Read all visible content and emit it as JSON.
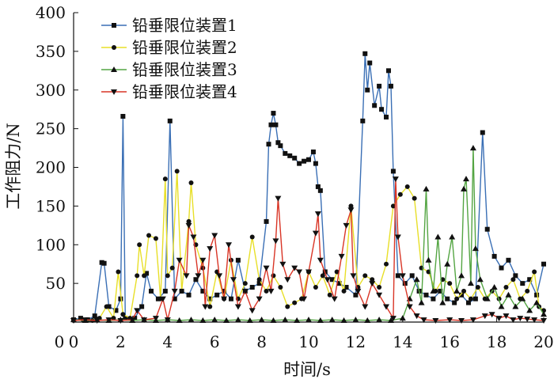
{
  "chart_data": {
    "type": "line",
    "xlabel": "时间/s",
    "ylabel": "工作阻力/N",
    "xlim": [
      0,
      20
    ],
    "ylim": [
      0,
      400
    ],
    "x_ticks": [
      "0",
      "2",
      "4",
      "6",
      "8",
      "10",
      "12",
      "14",
      "16",
      "18",
      "20"
    ],
    "y_ticks": [
      "0",
      "50",
      "100",
      "150",
      "200",
      "250",
      "300",
      "350",
      "400"
    ],
    "grid": false,
    "legend_position": "top-left",
    "series": [
      {
        "name": "铅垂限位装置1",
        "color": "#3a6fb5",
        "marker": "square",
        "points": [
          [
            0,
            3
          ],
          [
            0.3,
            5
          ],
          [
            0.6,
            3
          ],
          [
            0.9,
            8
          ],
          [
            1.2,
            77
          ],
          [
            1.3,
            76
          ],
          [
            1.5,
            20
          ],
          [
            1.8,
            15
          ],
          [
            2.0,
            30
          ],
          [
            2.1,
            266
          ],
          [
            2.2,
            5
          ],
          [
            2.6,
            5
          ],
          [
            2.9,
            20
          ],
          [
            3.1,
            63
          ],
          [
            3.3,
            40
          ],
          [
            3.6,
            30
          ],
          [
            3.9,
            40
          ],
          [
            4.1,
            260
          ],
          [
            4.3,
            30
          ],
          [
            4.6,
            40
          ],
          [
            4.9,
            35
          ],
          [
            5.2,
            55
          ],
          [
            5.5,
            40
          ],
          [
            5.8,
            30
          ],
          [
            6.1,
            35
          ],
          [
            6.4,
            40
          ],
          [
            6.7,
            30
          ],
          [
            7.0,
            80
          ],
          [
            7.3,
            40
          ],
          [
            7.6,
            45
          ],
          [
            7.9,
            50
          ],
          [
            8.2,
            130
          ],
          [
            8.3,
            230
          ],
          [
            8.4,
            255
          ],
          [
            8.5,
            270
          ],
          [
            8.6,
            255
          ],
          [
            8.7,
            232
          ],
          [
            8.8,
            228
          ],
          [
            9.0,
            218
          ],
          [
            9.2,
            215
          ],
          [
            9.4,
            212
          ],
          [
            9.6,
            205
          ],
          [
            9.8,
            208
          ],
          [
            10.0,
            210
          ],
          [
            10.2,
            220
          ],
          [
            10.3,
            205
          ],
          [
            10.4,
            175
          ],
          [
            10.5,
            170
          ],
          [
            10.7,
            65
          ],
          [
            11.0,
            55
          ],
          [
            11.3,
            50
          ],
          [
            11.6,
            45
          ],
          [
            12.0,
            35
          ],
          [
            12.3,
            260
          ],
          [
            12.4,
            347
          ],
          [
            12.5,
            300
          ],
          [
            12.6,
            335
          ],
          [
            12.8,
            280
          ],
          [
            13.0,
            305
          ],
          [
            13.1,
            275
          ],
          [
            13.3,
            265
          ],
          [
            13.4,
            325
          ],
          [
            13.5,
            305
          ],
          [
            13.6,
            195
          ],
          [
            13.8,
            60
          ],
          [
            14.1,
            50
          ],
          [
            14.4,
            60
          ],
          [
            14.7,
            40
          ],
          [
            15.0,
            35
          ],
          [
            15.3,
            30
          ],
          [
            15.6,
            40
          ],
          [
            15.9,
            30
          ],
          [
            16.2,
            25
          ],
          [
            16.5,
            35
          ],
          [
            16.8,
            25
          ],
          [
            17.1,
            30
          ],
          [
            17.4,
            245
          ],
          [
            17.6,
            120
          ],
          [
            17.9,
            85
          ],
          [
            18.2,
            70
          ],
          [
            18.5,
            80
          ],
          [
            18.8,
            60
          ],
          [
            19.1,
            50
          ],
          [
            19.4,
            55
          ],
          [
            19.7,
            35
          ],
          [
            20.0,
            75
          ]
        ]
      },
      {
        "name": "铅垂限位装置2",
        "color": "#e8df28",
        "marker": "circle",
        "points": [
          [
            0,
            2
          ],
          [
            0.4,
            3
          ],
          [
            0.8,
            2
          ],
          [
            1.1,
            5
          ],
          [
            1.4,
            20
          ],
          [
            1.7,
            5
          ],
          [
            1.9,
            65
          ],
          [
            2.1,
            10
          ],
          [
            2.4,
            5
          ],
          [
            2.7,
            60
          ],
          [
            2.8,
            100
          ],
          [
            3.0,
            60
          ],
          [
            3.2,
            112
          ],
          [
            3.5,
            108
          ],
          [
            3.7,
            30
          ],
          [
            3.9,
            185
          ],
          [
            4.0,
            60
          ],
          [
            4.2,
            70
          ],
          [
            4.4,
            195
          ],
          [
            4.6,
            40
          ],
          [
            4.9,
            130
          ],
          [
            5.0,
            180
          ],
          [
            5.2,
            100
          ],
          [
            5.5,
            70
          ],
          [
            5.8,
            20
          ],
          [
            6.1,
            65
          ],
          [
            6.4,
            30
          ],
          [
            6.7,
            80
          ],
          [
            7.0,
            30
          ],
          [
            7.3,
            50
          ],
          [
            7.6,
            110
          ],
          [
            7.9,
            55
          ],
          [
            8.2,
            40
          ],
          [
            8.5,
            60
          ],
          [
            8.8,
            45
          ],
          [
            9.1,
            20
          ],
          [
            9.4,
            25
          ],
          [
            9.7,
            30
          ],
          [
            10.0,
            65
          ],
          [
            10.3,
            45
          ],
          [
            10.6,
            60
          ],
          [
            10.9,
            35
          ],
          [
            11.2,
            65
          ],
          [
            11.5,
            40
          ],
          [
            11.8,
            150
          ],
          [
            12.1,
            45
          ],
          [
            12.4,
            60
          ],
          [
            12.7,
            55
          ],
          [
            13.0,
            45
          ],
          [
            13.3,
            75
          ],
          [
            13.6,
            150
          ],
          [
            13.9,
            165
          ],
          [
            14.2,
            175
          ],
          [
            14.5,
            160
          ],
          [
            14.8,
            70
          ],
          [
            15.1,
            65
          ],
          [
            15.4,
            40
          ],
          [
            15.7,
            55
          ],
          [
            16.0,
            50
          ],
          [
            16.3,
            30
          ],
          [
            16.6,
            40
          ],
          [
            16.9,
            30
          ],
          [
            17.2,
            45
          ],
          [
            17.5,
            30
          ],
          [
            17.8,
            40
          ],
          [
            18.1,
            30
          ],
          [
            18.4,
            45
          ],
          [
            18.7,
            55
          ],
          [
            19.0,
            30
          ],
          [
            19.3,
            40
          ],
          [
            19.6,
            65
          ],
          [
            19.8,
            20
          ],
          [
            20.0,
            15
          ]
        ]
      },
      {
        "name": "铅垂限位装置3",
        "color": "#54a543",
        "marker": "triangle-up",
        "points": [
          [
            0,
            3
          ],
          [
            0.5,
            2
          ],
          [
            1.0,
            3
          ],
          [
            1.5,
            2
          ],
          [
            2.0,
            3
          ],
          [
            2.5,
            2
          ],
          [
            3.0,
            3
          ],
          [
            3.5,
            2
          ],
          [
            4.0,
            3
          ],
          [
            4.5,
            2
          ],
          [
            5.0,
            3
          ],
          [
            5.5,
            2
          ],
          [
            6.0,
            3
          ],
          [
            6.5,
            2
          ],
          [
            7.0,
            3
          ],
          [
            7.5,
            2
          ],
          [
            8.0,
            3
          ],
          [
            8.5,
            2
          ],
          [
            9.0,
            3
          ],
          [
            9.5,
            2
          ],
          [
            10.0,
            3
          ],
          [
            10.5,
            2
          ],
          [
            11.0,
            3
          ],
          [
            11.5,
            2
          ],
          [
            12.0,
            3
          ],
          [
            12.5,
            2
          ],
          [
            13.0,
            3
          ],
          [
            13.5,
            2
          ],
          [
            14.0,
            5
          ],
          [
            14.3,
            30
          ],
          [
            14.6,
            55
          ],
          [
            14.8,
            25
          ],
          [
            15.0,
            172
          ],
          [
            15.1,
            80
          ],
          [
            15.3,
            40
          ],
          [
            15.5,
            110
          ],
          [
            15.7,
            25
          ],
          [
            15.9,
            75
          ],
          [
            16.1,
            110
          ],
          [
            16.3,
            40
          ],
          [
            16.5,
            60
          ],
          [
            16.6,
            172
          ],
          [
            16.7,
            185
          ],
          [
            16.9,
            50
          ],
          [
            17.0,
            225
          ],
          [
            17.1,
            95
          ],
          [
            17.3,
            55
          ],
          [
            17.6,
            30
          ],
          [
            17.9,
            45
          ],
          [
            18.2,
            20
          ],
          [
            18.5,
            35
          ],
          [
            18.8,
            20
          ],
          [
            19.1,
            30
          ],
          [
            19.4,
            15
          ],
          [
            19.7,
            25
          ],
          [
            20.0,
            10
          ]
        ]
      },
      {
        "name": "铅垂限位装置4",
        "color": "#d93526",
        "marker": "triangle-down",
        "points": [
          [
            0,
            2
          ],
          [
            0.5,
            3
          ],
          [
            1.0,
            2
          ],
          [
            1.5,
            3
          ],
          [
            2.0,
            2
          ],
          [
            2.5,
            3
          ],
          [
            2.7,
            15
          ],
          [
            3.0,
            3
          ],
          [
            3.5,
            5
          ],
          [
            3.8,
            30
          ],
          [
            4.0,
            3
          ],
          [
            4.3,
            40
          ],
          [
            4.5,
            80
          ],
          [
            4.8,
            60
          ],
          [
            4.9,
            125
          ],
          [
            5.1,
            110
          ],
          [
            5.3,
            60
          ],
          [
            5.5,
            80
          ],
          [
            5.6,
            20
          ],
          [
            5.8,
            95
          ],
          [
            6.0,
            112
          ],
          [
            6.2,
            60
          ],
          [
            6.4,
            30
          ],
          [
            6.6,
            100
          ],
          [
            6.8,
            55
          ],
          [
            7.0,
            20
          ],
          [
            7.3,
            40
          ],
          [
            7.6,
            15
          ],
          [
            7.9,
            30
          ],
          [
            8.2,
            70
          ],
          [
            8.4,
            40
          ],
          [
            8.6,
            105
          ],
          [
            8.7,
            160
          ],
          [
            8.9,
            75
          ],
          [
            9.1,
            55
          ],
          [
            9.4,
            70
          ],
          [
            9.6,
            65
          ],
          [
            9.8,
            30
          ],
          [
            10.0,
            65
          ],
          [
            10.3,
            115
          ],
          [
            10.4,
            140
          ],
          [
            10.5,
            80
          ],
          [
            10.8,
            55
          ],
          [
            11.1,
            30
          ],
          [
            11.4,
            85
          ],
          [
            11.6,
            125
          ],
          [
            11.8,
            145
          ],
          [
            11.9,
            60
          ],
          [
            12.1,
            40
          ],
          [
            12.4,
            20
          ],
          [
            12.7,
            50
          ],
          [
            13.0,
            35
          ],
          [
            13.3,
            20
          ],
          [
            13.6,
            5
          ],
          [
            13.7,
            185
          ],
          [
            13.8,
            110
          ],
          [
            14.0,
            60
          ],
          [
            14.3,
            20
          ],
          [
            14.6,
            8
          ],
          [
            14.9,
            3
          ],
          [
            15.4,
            2
          ],
          [
            16.0,
            3
          ],
          [
            16.5,
            2
          ],
          [
            17.0,
            3
          ],
          [
            17.5,
            8
          ],
          [
            17.8,
            10
          ],
          [
            18.1,
            5
          ],
          [
            18.4,
            8
          ],
          [
            18.7,
            3
          ],
          [
            19.0,
            5
          ],
          [
            19.3,
            4
          ],
          [
            19.6,
            3
          ],
          [
            20.0,
            2
          ]
        ]
      }
    ]
  }
}
